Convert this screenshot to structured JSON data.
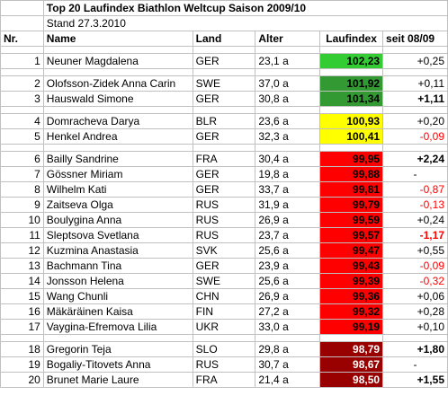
{
  "title": "Top 20 Laufindex Biathlon Weltcup Saison 2009/10",
  "stand": "Stand 27.3.2010",
  "headers": {
    "nr": "Nr.",
    "name": "Name",
    "land": "Land",
    "alter": "Alter",
    "laufindex": "Laufindex",
    "seit": "seit 08/09"
  },
  "colors": {
    "green": "#33cc33",
    "darkgreen": "#339933",
    "yellow": "#ffff00",
    "red": "#ff0000",
    "darkred": "#990000"
  },
  "groups": [
    {
      "color": "green",
      "rows": [
        {
          "nr": "1",
          "name": "Neuner Magdalena",
          "land": "GER",
          "alter": "23,1 a",
          "index": "102,23",
          "change": "+0,25",
          "bold": false,
          "neg": false
        }
      ]
    },
    {
      "color": "darkgreen",
      "rows": [
        {
          "nr": "2",
          "name": "Olofsson-Zidek Anna Carin",
          "land": "SWE",
          "alter": "37,0 a",
          "index": "101,92",
          "change": "+0,11",
          "bold": false,
          "neg": false
        },
        {
          "nr": "3",
          "name": "Hauswald Simone",
          "land": "GER",
          "alter": "30,8 a",
          "index": "101,34",
          "change": "+1,11",
          "bold": true,
          "neg": false
        }
      ]
    },
    {
      "color": "yellow",
      "rows": [
        {
          "nr": "4",
          "name": "Domracheva Darya",
          "land": "BLR",
          "alter": "23,6 a",
          "index": "100,93",
          "change": "+0,20",
          "bold": false,
          "neg": false
        },
        {
          "nr": "5",
          "name": "Henkel Andrea",
          "land": "GER",
          "alter": "32,3 a",
          "index": "100,41",
          "change": "-0,09",
          "bold": false,
          "neg": true
        }
      ]
    },
    {
      "color": "red",
      "rows": [
        {
          "nr": "6",
          "name": "Bailly Sandrine",
          "land": "FRA",
          "alter": "30,4 a",
          "index": "99,95",
          "change": "+2,24",
          "bold": true,
          "neg": false
        },
        {
          "nr": "7",
          "name": "Gössner Miriam",
          "land": "GER",
          "alter": "19,8 a",
          "index": "99,88",
          "change": "-",
          "bold": false,
          "neg": false,
          "center": true
        },
        {
          "nr": "8",
          "name": "Wilhelm Kati",
          "land": "GER",
          "alter": "33,7 a",
          "index": "99,81",
          "change": "-0,87",
          "bold": false,
          "neg": true
        },
        {
          "nr": "9",
          "name": "Zaitseva Olga",
          "land": "RUS",
          "alter": "31,9 a",
          "index": "99,79",
          "change": "-0,13",
          "bold": false,
          "neg": true
        },
        {
          "nr": "10",
          "name": "Boulygina Anna",
          "land": "RUS",
          "alter": "26,9 a",
          "index": "99,59",
          "change": "+0,24",
          "bold": false,
          "neg": false
        },
        {
          "nr": "11",
          "name": "Sleptsova Svetlana",
          "land": "RUS",
          "alter": "23,7 a",
          "index": "99,57",
          "change": "-1,17",
          "bold": true,
          "neg": true
        },
        {
          "nr": "12",
          "name": "Kuzmina Anastasia",
          "land": "SVK",
          "alter": "25,6 a",
          "index": "99,47",
          "change": "+0,55",
          "bold": false,
          "neg": false
        },
        {
          "nr": "13",
          "name": "Bachmann Tina",
          "land": "GER",
          "alter": "23,9 a",
          "index": "99,43",
          "change": "-0,09",
          "bold": false,
          "neg": true
        },
        {
          "nr": "14",
          "name": "Jonsson Helena",
          "land": "SWE",
          "alter": "25,6 a",
          "index": "99,39",
          "change": "-0,32",
          "bold": false,
          "neg": true
        },
        {
          "nr": "15",
          "name": "Wang Chunli",
          "land": "CHN",
          "alter": "26,9 a",
          "index": "99,36",
          "change": "+0,06",
          "bold": false,
          "neg": false
        },
        {
          "nr": "16",
          "name": "Mäkäräinen Kaisa",
          "land": "FIN",
          "alter": "27,2 a",
          "index": "99,32",
          "change": "+0,28",
          "bold": false,
          "neg": false
        },
        {
          "nr": "17",
          "name": "Vaygina-Efremova Lilia",
          "land": "UKR",
          "alter": "33,0 a",
          "index": "99,19",
          "change": "+0,10",
          "bold": false,
          "neg": false
        }
      ]
    },
    {
      "color": "darkred",
      "rows": [
        {
          "nr": "18",
          "name": "Gregorin Teja",
          "land": "SLO",
          "alter": "29,8 a",
          "index": "98,79",
          "change": "+1,80",
          "bold": true,
          "neg": false
        },
        {
          "nr": "19",
          "name": "Bogaliy-Titovets Anna",
          "land": "RUS",
          "alter": "30,7 a",
          "index": "98,67",
          "change": "-",
          "bold": false,
          "neg": false,
          "center": true
        },
        {
          "nr": "20",
          "name": "Brunet Marie Laure",
          "land": "FRA",
          "alter": "21,4 a",
          "index": "98,50",
          "change": "+1,55",
          "bold": true,
          "neg": false
        }
      ]
    }
  ]
}
